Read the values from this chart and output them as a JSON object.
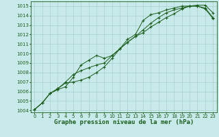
{
  "xlabel": "Graphe pression niveau de la mer (hPa)",
  "background_color": "#c8eaea",
  "grid_color": "#a8d0d0",
  "line_color": "#1a5c1a",
  "xlim": [
    -0.5,
    23.5
  ],
  "ylim": [
    1003.8,
    1015.5
  ],
  "xticks": [
    0,
    1,
    2,
    3,
    4,
    5,
    6,
    7,
    8,
    9,
    10,
    11,
    12,
    13,
    14,
    15,
    16,
    17,
    18,
    19,
    20,
    21,
    22,
    23
  ],
  "yticks": [
    1004,
    1005,
    1006,
    1007,
    1008,
    1009,
    1010,
    1011,
    1012,
    1013,
    1014,
    1015
  ],
  "line1_x": [
    0,
    1,
    2,
    3,
    4,
    5,
    6,
    7,
    8,
    9,
    10,
    11,
    12,
    13,
    14,
    15,
    16,
    17,
    18,
    19,
    20,
    21,
    22,
    23
  ],
  "line1_y": [
    1004.1,
    1004.8,
    1005.8,
    1006.3,
    1006.9,
    1007.0,
    1007.2,
    1007.5,
    1008.0,
    1008.6,
    1009.5,
    1010.5,
    1011.5,
    1012.0,
    1013.5,
    1014.1,
    1014.3,
    1014.6,
    1014.8,
    1015.0,
    1015.0,
    1015.0,
    1014.7,
    1013.7
  ],
  "line2_x": [
    0,
    1,
    2,
    3,
    4,
    5,
    6,
    7,
    8,
    9,
    10,
    11,
    12,
    13,
    14,
    15,
    16,
    17,
    18,
    19,
    20,
    21,
    22,
    23
  ],
  "line2_y": [
    1004.1,
    1004.8,
    1005.8,
    1006.3,
    1007.0,
    1007.8,
    1008.2,
    1008.5,
    1008.8,
    1009.0,
    1009.8,
    1010.5,
    1011.2,
    1011.8,
    1012.2,
    1012.8,
    1013.3,
    1013.8,
    1014.2,
    1014.7,
    1015.0,
    1015.1,
    1015.1,
    1014.3
  ],
  "line3_x": [
    0,
    1,
    2,
    3,
    4,
    5,
    6,
    7,
    8,
    9,
    10,
    11,
    12,
    13,
    14,
    15,
    16,
    17,
    18,
    19,
    20,
    21,
    22,
    23
  ],
  "line3_y": [
    1004.1,
    1004.8,
    1005.8,
    1006.2,
    1006.5,
    1007.5,
    1008.8,
    1009.3,
    1009.8,
    1009.5,
    1009.8,
    1010.5,
    1011.2,
    1011.8,
    1012.5,
    1013.2,
    1013.8,
    1014.3,
    1014.6,
    1014.8,
    1015.0,
    1015.0,
    1014.8,
    1013.8
  ],
  "tick_fontsize": 5.0,
  "label_fontsize": 6.5,
  "marker": "+",
  "marker_size": 2.5,
  "line_width": 0.7
}
